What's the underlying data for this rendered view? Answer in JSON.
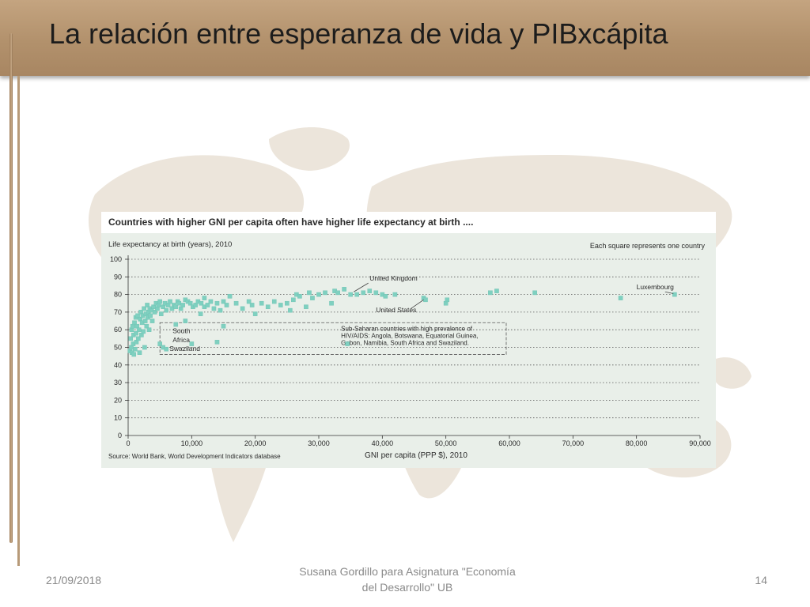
{
  "slide": {
    "title": "La relación entre esperanza de vida y PIBxcápita",
    "footer_date": "21/09/2018",
    "footer_center_line1": "Susana Gordillo para Asignatura \"Economía",
    "footer_center_line2": "del Desarrollo\" UB",
    "page_number": "14",
    "colors": {
      "title_bar": "#b2916c",
      "map": "#e9e1d6",
      "marker": "#7fd0c0",
      "panel_bg": "#eaf0ea"
    }
  },
  "chart_data": {
    "type": "scatter",
    "title": "Countries with higher GNI per capita often have higher life expectancy at birth ....",
    "ylabel": "Life expectancy at birth (years), 2010",
    "xlabel": "GNI per capita (PPP $), 2010",
    "note": "Each square represents one country",
    "source": "Source: World Bank, World Development Indicators database",
    "xlim": [
      0,
      90000
    ],
    "ylim": [
      0,
      100
    ],
    "x_ticks": [
      0,
      10000,
      20000,
      30000,
      40000,
      50000,
      60000,
      70000,
      80000,
      90000
    ],
    "x_tick_labels": [
      "0",
      "10,000",
      "20,000",
      "30,000",
      "40,000",
      "50,000",
      "60,000",
      "70,000",
      "80,000",
      "90,000"
    ],
    "y_ticks": [
      0,
      10,
      20,
      30,
      40,
      50,
      60,
      70,
      80,
      90,
      100
    ],
    "y_tick_labels": [
      "0",
      "10",
      "20",
      "30",
      "40",
      "50",
      "60",
      "70",
      "80",
      "90",
      "100"
    ],
    "grid": "horizontal-dotted",
    "annotations": [
      {
        "text": "United Kingdom",
        "x": 35000,
        "y": 80
      },
      {
        "text": "United States",
        "x": 46500,
        "y": 78
      },
      {
        "text": "Luxembourg",
        "x": 86000,
        "y": 80
      },
      {
        "text_lines": [
          "South",
          "Africa"
        ],
        "x": 10000,
        "y": 53
      },
      {
        "text": "Swaziland",
        "x": 5000,
        "y": 48
      }
    ],
    "highlight_box": {
      "text_lines": [
        "Sub-Saharan countries with high prevalence of",
        "HIV/AIDS: Angola, Botswana, Equatorial Guinea,",
        "Gabon, Namibia, South Africa and Swaziland."
      ],
      "x_range": [
        5000,
        59500
      ],
      "y_range": [
        46,
        64
      ]
    },
    "series": [
      {
        "points": [
          [
            300,
            48
          ],
          [
            400,
            55
          ],
          [
            500,
            50
          ],
          [
            550,
            60
          ],
          [
            600,
            47
          ],
          [
            700,
            62
          ],
          [
            800,
            52
          ],
          [
            850,
            57
          ],
          [
            900,
            46
          ],
          [
            1000,
            64
          ],
          [
            1100,
            49
          ],
          [
            1200,
            67
          ],
          [
            1250,
            58
          ],
          [
            1300,
            53
          ],
          [
            1400,
            62
          ],
          [
            1500,
            68
          ],
          [
            1600,
            55
          ],
          [
            1700,
            60
          ],
          [
            1800,
            47
          ],
          [
            1900,
            66
          ],
          [
            2000,
            70
          ],
          [
            2100,
            57
          ],
          [
            2200,
            64
          ],
          [
            2300,
            68
          ],
          [
            2400,
            59
          ],
          [
            2500,
            72
          ],
          [
            2600,
            50
          ],
          [
            2700,
            65
          ],
          [
            2800,
            69
          ],
          [
            2900,
            62
          ],
          [
            3000,
            74
          ],
          [
            3100,
            67
          ],
          [
            3200,
            70
          ],
          [
            3300,
            60
          ],
          [
            3400,
            72
          ],
          [
            3500,
            68
          ],
          [
            3700,
            71
          ],
          [
            3800,
            65
          ],
          [
            4000,
            73
          ],
          [
            4200,
            70
          ],
          [
            4400,
            75
          ],
          [
            4600,
            72
          ],
          [
            4800,
            74
          ],
          [
            5000,
            76
          ],
          [
            5200,
            69
          ],
          [
            5500,
            73
          ],
          [
            5800,
            75
          ],
          [
            6000,
            71
          ],
          [
            6300,
            74
          ],
          [
            6600,
            76
          ],
          [
            6900,
            72
          ],
          [
            7200,
            74
          ],
          [
            7500,
            73
          ],
          [
            7800,
            76
          ],
          [
            8000,
            75
          ],
          [
            8300,
            72
          ],
          [
            8600,
            74
          ],
          [
            9000,
            77
          ],
          [
            9400,
            76
          ],
          [
            9800,
            75
          ],
          [
            10200,
            73
          ],
          [
            10600,
            74
          ],
          [
            11000,
            76
          ],
          [
            11500,
            75
          ],
          [
            12000,
            73
          ],
          [
            12500,
            74
          ],
          [
            13000,
            76
          ],
          [
            13500,
            72
          ],
          [
            14000,
            75
          ],
          [
            14500,
            71
          ],
          [
            15000,
            76
          ],
          [
            15500,
            74
          ],
          [
            16000,
            79
          ],
          [
            12000,
            78
          ],
          [
            11400,
            69
          ],
          [
            17000,
            75
          ],
          [
            18000,
            72
          ],
          [
            19000,
            76
          ],
          [
            19500,
            74
          ],
          [
            20000,
            69
          ],
          [
            21000,
            75
          ],
          [
            22000,
            73
          ],
          [
            23000,
            76
          ],
          [
            24000,
            74
          ],
          [
            25000,
            75
          ],
          [
            25500,
            71
          ],
          [
            26000,
            77
          ],
          [
            26500,
            80
          ],
          [
            27000,
            79
          ],
          [
            28000,
            73
          ],
          [
            28500,
            81
          ],
          [
            29000,
            78
          ],
          [
            30000,
            80
          ],
          [
            31000,
            81
          ],
          [
            32000,
            75
          ],
          [
            32500,
            82
          ],
          [
            33000,
            81
          ],
          [
            34000,
            83
          ],
          [
            35000,
            80
          ],
          [
            36000,
            80
          ],
          [
            37000,
            81
          ],
          [
            38000,
            82
          ],
          [
            39000,
            81
          ],
          [
            40000,
            80
          ],
          [
            40500,
            79
          ],
          [
            42000,
            80
          ],
          [
            46500,
            78
          ],
          [
            46800,
            77
          ],
          [
            50000,
            75
          ],
          [
            50200,
            77
          ],
          [
            57000,
            81
          ],
          [
            58000,
            82
          ],
          [
            64000,
            81
          ],
          [
            77500,
            78
          ],
          [
            86000,
            80
          ],
          [
            5000,
            52
          ],
          [
            5500,
            50
          ],
          [
            6000,
            49
          ],
          [
            10000,
            52
          ],
          [
            15000,
            62
          ],
          [
            14000,
            53
          ],
          [
            34500,
            52
          ],
          [
            7500,
            63
          ],
          [
            9000,
            65
          ]
        ]
      }
    ]
  }
}
